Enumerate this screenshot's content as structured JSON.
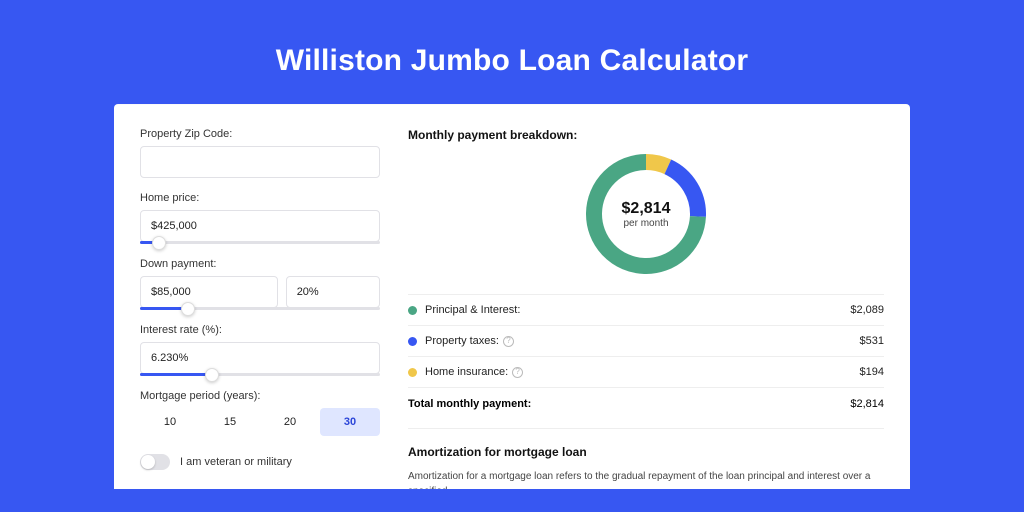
{
  "page": {
    "title": "Williston Jumbo Loan Calculator",
    "background": "#3757f2",
    "card_bg": "#ffffff"
  },
  "form": {
    "zip": {
      "label": "Property Zip Code:",
      "value": ""
    },
    "home_price": {
      "label": "Home price:",
      "value": "$425,000",
      "slider_pct": 8
    },
    "down_payment": {
      "label": "Down payment:",
      "value": "$85,000",
      "pct_value": "20%",
      "slider_pct": 20
    },
    "interest": {
      "label": "Interest rate (%):",
      "value": "6.230%",
      "slider_pct": 30
    },
    "period": {
      "label": "Mortgage period (years):",
      "options": [
        "10",
        "15",
        "20",
        "30"
      ],
      "selected": "30"
    },
    "veteran": {
      "label": "I am veteran or military",
      "on": false
    }
  },
  "breakdown": {
    "title": "Monthly payment breakdown:",
    "center_amount": "$2,814",
    "center_sub": "per month",
    "donut": {
      "size": 120,
      "thickness": 16,
      "segments": [
        {
          "label": "Home insurance",
          "color": "#f0c74a",
          "value": 194
        },
        {
          "label": "Property taxes",
          "color": "#3757f2",
          "value": 531
        },
        {
          "label": "Principal & Interest",
          "color": "#4aa684",
          "value": 2089
        }
      ]
    },
    "rows": [
      {
        "dot": "#4aa684",
        "label": "Principal & Interest:",
        "info": false,
        "value": "$2,089"
      },
      {
        "dot": "#3757f2",
        "label": "Property taxes:",
        "info": true,
        "value": "$531"
      },
      {
        "dot": "#f0c74a",
        "label": "Home insurance:",
        "info": true,
        "value": "$194"
      }
    ],
    "total": {
      "label": "Total monthly payment:",
      "value": "$2,814"
    }
  },
  "amort": {
    "title": "Amortization for mortgage loan",
    "text": "Amortization for a mortgage loan refers to the gradual repayment of the loan principal and interest over a specified"
  }
}
